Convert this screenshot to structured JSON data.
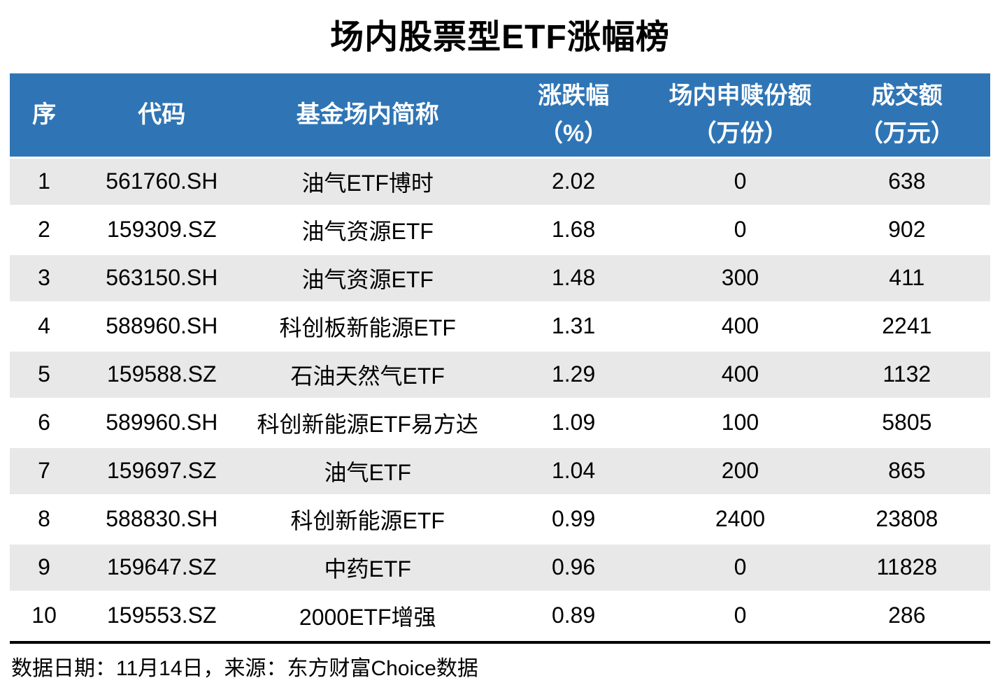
{
  "title": "场内股票型ETF涨幅榜",
  "header": {
    "columns": [
      {
        "key": "rank",
        "line1": "序",
        "line2": ""
      },
      {
        "key": "code",
        "line1": "代码",
        "line2": ""
      },
      {
        "key": "name",
        "line1": "基金场内简称",
        "line2": ""
      },
      {
        "key": "change",
        "line1": "涨跌幅",
        "line2": "（%）"
      },
      {
        "key": "shares",
        "line1": "场内申赎份额",
        "line2": "（万份）"
      },
      {
        "key": "turnover",
        "line1": "成交额",
        "line2": "（万元）"
      }
    ]
  },
  "chart_data": {
    "type": "table",
    "title": "场内股票型ETF涨幅榜",
    "columns": [
      "序",
      "代码",
      "基金场内简称",
      "涨跌幅(%)",
      "场内申赎份额(万份)",
      "成交额(万元)"
    ],
    "rows": [
      [
        "1",
        "561760.SH",
        "油气ETF博时",
        "2.02",
        "0",
        "638"
      ],
      [
        "2",
        "159309.SZ",
        "油气资源ETF",
        "1.68",
        "0",
        "902"
      ],
      [
        "3",
        "563150.SH",
        "油气资源ETF",
        "1.48",
        "300",
        "411"
      ],
      [
        "4",
        "588960.SH",
        "科创板新能源ETF",
        "1.31",
        "400",
        "2241"
      ],
      [
        "5",
        "159588.SZ",
        "石油天然气ETF",
        "1.29",
        "400",
        "1132"
      ],
      [
        "6",
        "589960.SH",
        "科创新能源ETF易方达",
        "1.09",
        "100",
        "5805"
      ],
      [
        "7",
        "159697.SZ",
        "油气ETF",
        "1.04",
        "200",
        "865"
      ],
      [
        "8",
        "588830.SH",
        "科创新能源ETF",
        "0.99",
        "2400",
        "23808"
      ],
      [
        "9",
        "159647.SZ",
        "中药ETF",
        "0.96",
        "0",
        "11828"
      ],
      [
        "10",
        "159553.SZ",
        "2000ETF增强",
        "0.89",
        "0",
        "286"
      ]
    ]
  },
  "footer": {
    "text": "数据日期：11月14日，来源：东方财富Choice数据"
  },
  "colors": {
    "header_bg": "#2F75B5",
    "header_text": "#FFFFFF",
    "row_alt_bg": "#E8E8E8",
    "row_bg": "#FFFFFF",
    "body_text": "#000000",
    "rule_line": "#000000"
  }
}
